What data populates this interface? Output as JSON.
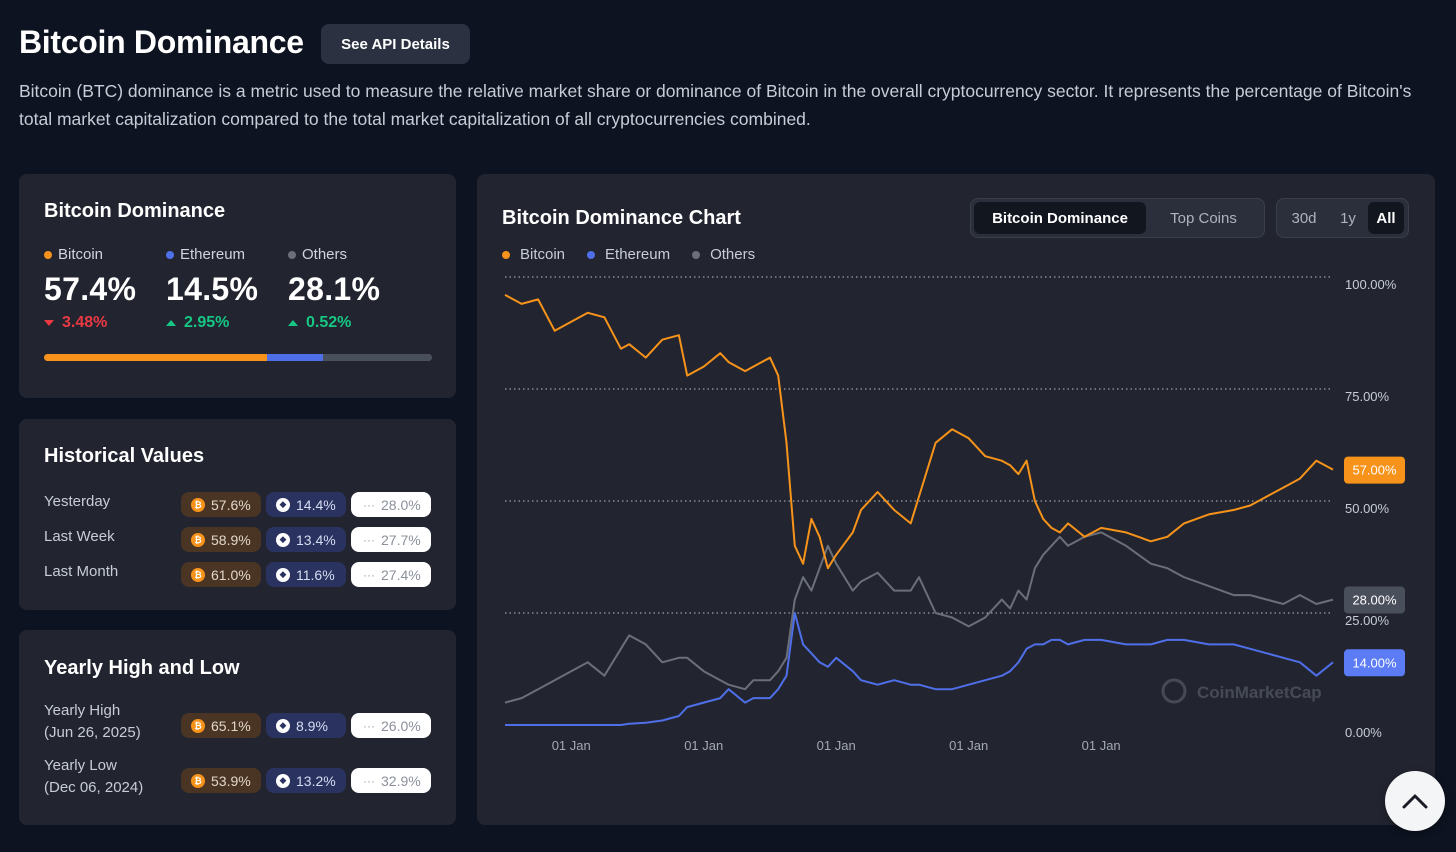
{
  "page": {
    "title": "Bitcoin Dominance",
    "api_button": "See API Details",
    "description": "Bitcoin (BTC) dominance is a metric used to measure the relative market share or dominance of Bitcoin in the overall cryptocurrency sector. It represents the percentage of Bitcoin's total market capitalization compared to the total market capitalization of all cryptocurrencies combined."
  },
  "colors": {
    "bitcoin": "#f7931a",
    "ethereum": "#4f6fe8",
    "others": "#6b6f7a",
    "up": "#16c784",
    "down": "#ea3943"
  },
  "dominance": {
    "title": "Bitcoin Dominance",
    "items": [
      {
        "label": "Bitcoin",
        "value": "57.4%",
        "change": "3.48%",
        "direction": "down",
        "share": 57.4
      },
      {
        "label": "Ethereum",
        "value": "14.5%",
        "change": "2.95%",
        "direction": "up",
        "share": 14.5
      },
      {
        "label": "Others",
        "value": "28.1%",
        "change": "0.52%",
        "direction": "up",
        "share": 28.1
      }
    ]
  },
  "historical": {
    "title": "Historical Values",
    "rows": [
      {
        "label": "Yesterday",
        "btc": "57.6%",
        "eth": "14.4%",
        "oth": "28.0%"
      },
      {
        "label": "Last Week",
        "btc": "58.9%",
        "eth": "13.4%",
        "oth": "27.7%"
      },
      {
        "label": "Last Month",
        "btc": "61.0%",
        "eth": "11.6%",
        "oth": "27.4%"
      }
    ]
  },
  "yearly": {
    "title": "Yearly High and Low",
    "rows": [
      {
        "label": "Yearly High",
        "date": "(Jun 26, 2025)",
        "btc": "65.1%",
        "eth": "8.9%",
        "oth": "26.0%"
      },
      {
        "label": "Yearly Low",
        "date": "(Dec 06, 2024)",
        "btc": "53.9%",
        "eth": "13.2%",
        "oth": "32.9%"
      }
    ]
  },
  "chart": {
    "title": "Bitcoin Dominance Chart",
    "view_tabs": [
      {
        "label": "Bitcoin Dominance",
        "active": true
      },
      {
        "label": "Top Coins",
        "active": false
      }
    ],
    "range_tabs": [
      {
        "label": "30d",
        "active": false
      },
      {
        "label": "1y",
        "active": false
      },
      {
        "label": "All",
        "active": true
      }
    ],
    "legend": [
      "Bitcoin",
      "Ethereum",
      "Others"
    ],
    "watermark": "CoinMarketCap"
  },
  "chart_data": {
    "type": "line",
    "title": "Bitcoin Dominance Chart",
    "xlabel": "",
    "ylabel": "",
    "ylim": [
      0,
      100
    ],
    "y_ticks": [
      "100.00%",
      "75.00%",
      "50.00%",
      "25.00%",
      "0.00%"
    ],
    "x_tick_labels": [
      "01 Jan",
      "01 Jan",
      "01 Jan",
      "01 Jan",
      "01 Jan"
    ],
    "x_ticks_at": [
      0.08,
      0.24,
      0.4,
      0.56,
      0.72
    ],
    "current_labels": [
      {
        "series": "Bitcoin",
        "text": "57.00%",
        "value": 57.0
      },
      {
        "series": "Others",
        "text": "28.00%",
        "value": 28.0
      },
      {
        "series": "Ethereum",
        "text": "14.00%",
        "value": 14.0
      }
    ],
    "x": [
      0.0,
      0.02,
      0.04,
      0.06,
      0.08,
      0.1,
      0.12,
      0.14,
      0.15,
      0.17,
      0.19,
      0.21,
      0.22,
      0.24,
      0.26,
      0.27,
      0.29,
      0.3,
      0.32,
      0.33,
      0.34,
      0.35,
      0.36,
      0.37,
      0.38,
      0.39,
      0.4,
      0.42,
      0.43,
      0.45,
      0.47,
      0.49,
      0.5,
      0.52,
      0.54,
      0.56,
      0.58,
      0.6,
      0.61,
      0.62,
      0.63,
      0.64,
      0.65,
      0.66,
      0.67,
      0.68,
      0.7,
      0.72,
      0.75,
      0.78,
      0.8,
      0.82,
      0.85,
      0.88,
      0.9,
      0.92,
      0.94,
      0.96,
      0.98,
      1.0
    ],
    "series": [
      {
        "name": "Bitcoin",
        "values": [
          96,
          94,
          95,
          88,
          90,
          92,
          91,
          84,
          85,
          82,
          86,
          87,
          78,
          80,
          83,
          81,
          79,
          80,
          82,
          78,
          63,
          40,
          36,
          46,
          42,
          35,
          38,
          43,
          48,
          52,
          48,
          45,
          51,
          63,
          66,
          64,
          60,
          59,
          58,
          56,
          59,
          50,
          46,
          44,
          43,
          45,
          42,
          44,
          43,
          41,
          42,
          45,
          47,
          48,
          49,
          51,
          53,
          55,
          59,
          57
        ]
      },
      {
        "name": "Others",
        "values": [
          5,
          6,
          8,
          10,
          12,
          14,
          11,
          17,
          20,
          18,
          14,
          15,
          15,
          12,
          10,
          9,
          8,
          10,
          10,
          12,
          15,
          28,
          33,
          30,
          35,
          40,
          36,
          30,
          32,
          34,
          30,
          30,
          33,
          25,
          24,
          22,
          24,
          28,
          26,
          30,
          28,
          35,
          38,
          40,
          42,
          40,
          42,
          43,
          40,
          36,
          35,
          33,
          31,
          29,
          29,
          28,
          27,
          29,
          27,
          28
        ]
      },
      {
        "name": "Ethereum",
        "values": [
          0,
          0,
          0,
          0,
          0,
          0,
          0,
          0,
          0.3,
          0.5,
          1,
          2,
          4,
          5,
          6,
          8,
          5,
          6,
          6,
          8,
          11,
          25,
          18,
          16,
          14,
          13,
          15,
          12,
          10,
          9,
          10,
          9,
          9,
          8,
          8,
          9,
          10,
          11,
          12,
          14,
          17,
          18,
          18,
          19,
          19,
          18,
          19,
          19,
          18,
          18,
          19,
          19,
          18,
          18,
          17,
          16,
          15,
          14,
          11,
          14
        ]
      }
    ]
  }
}
